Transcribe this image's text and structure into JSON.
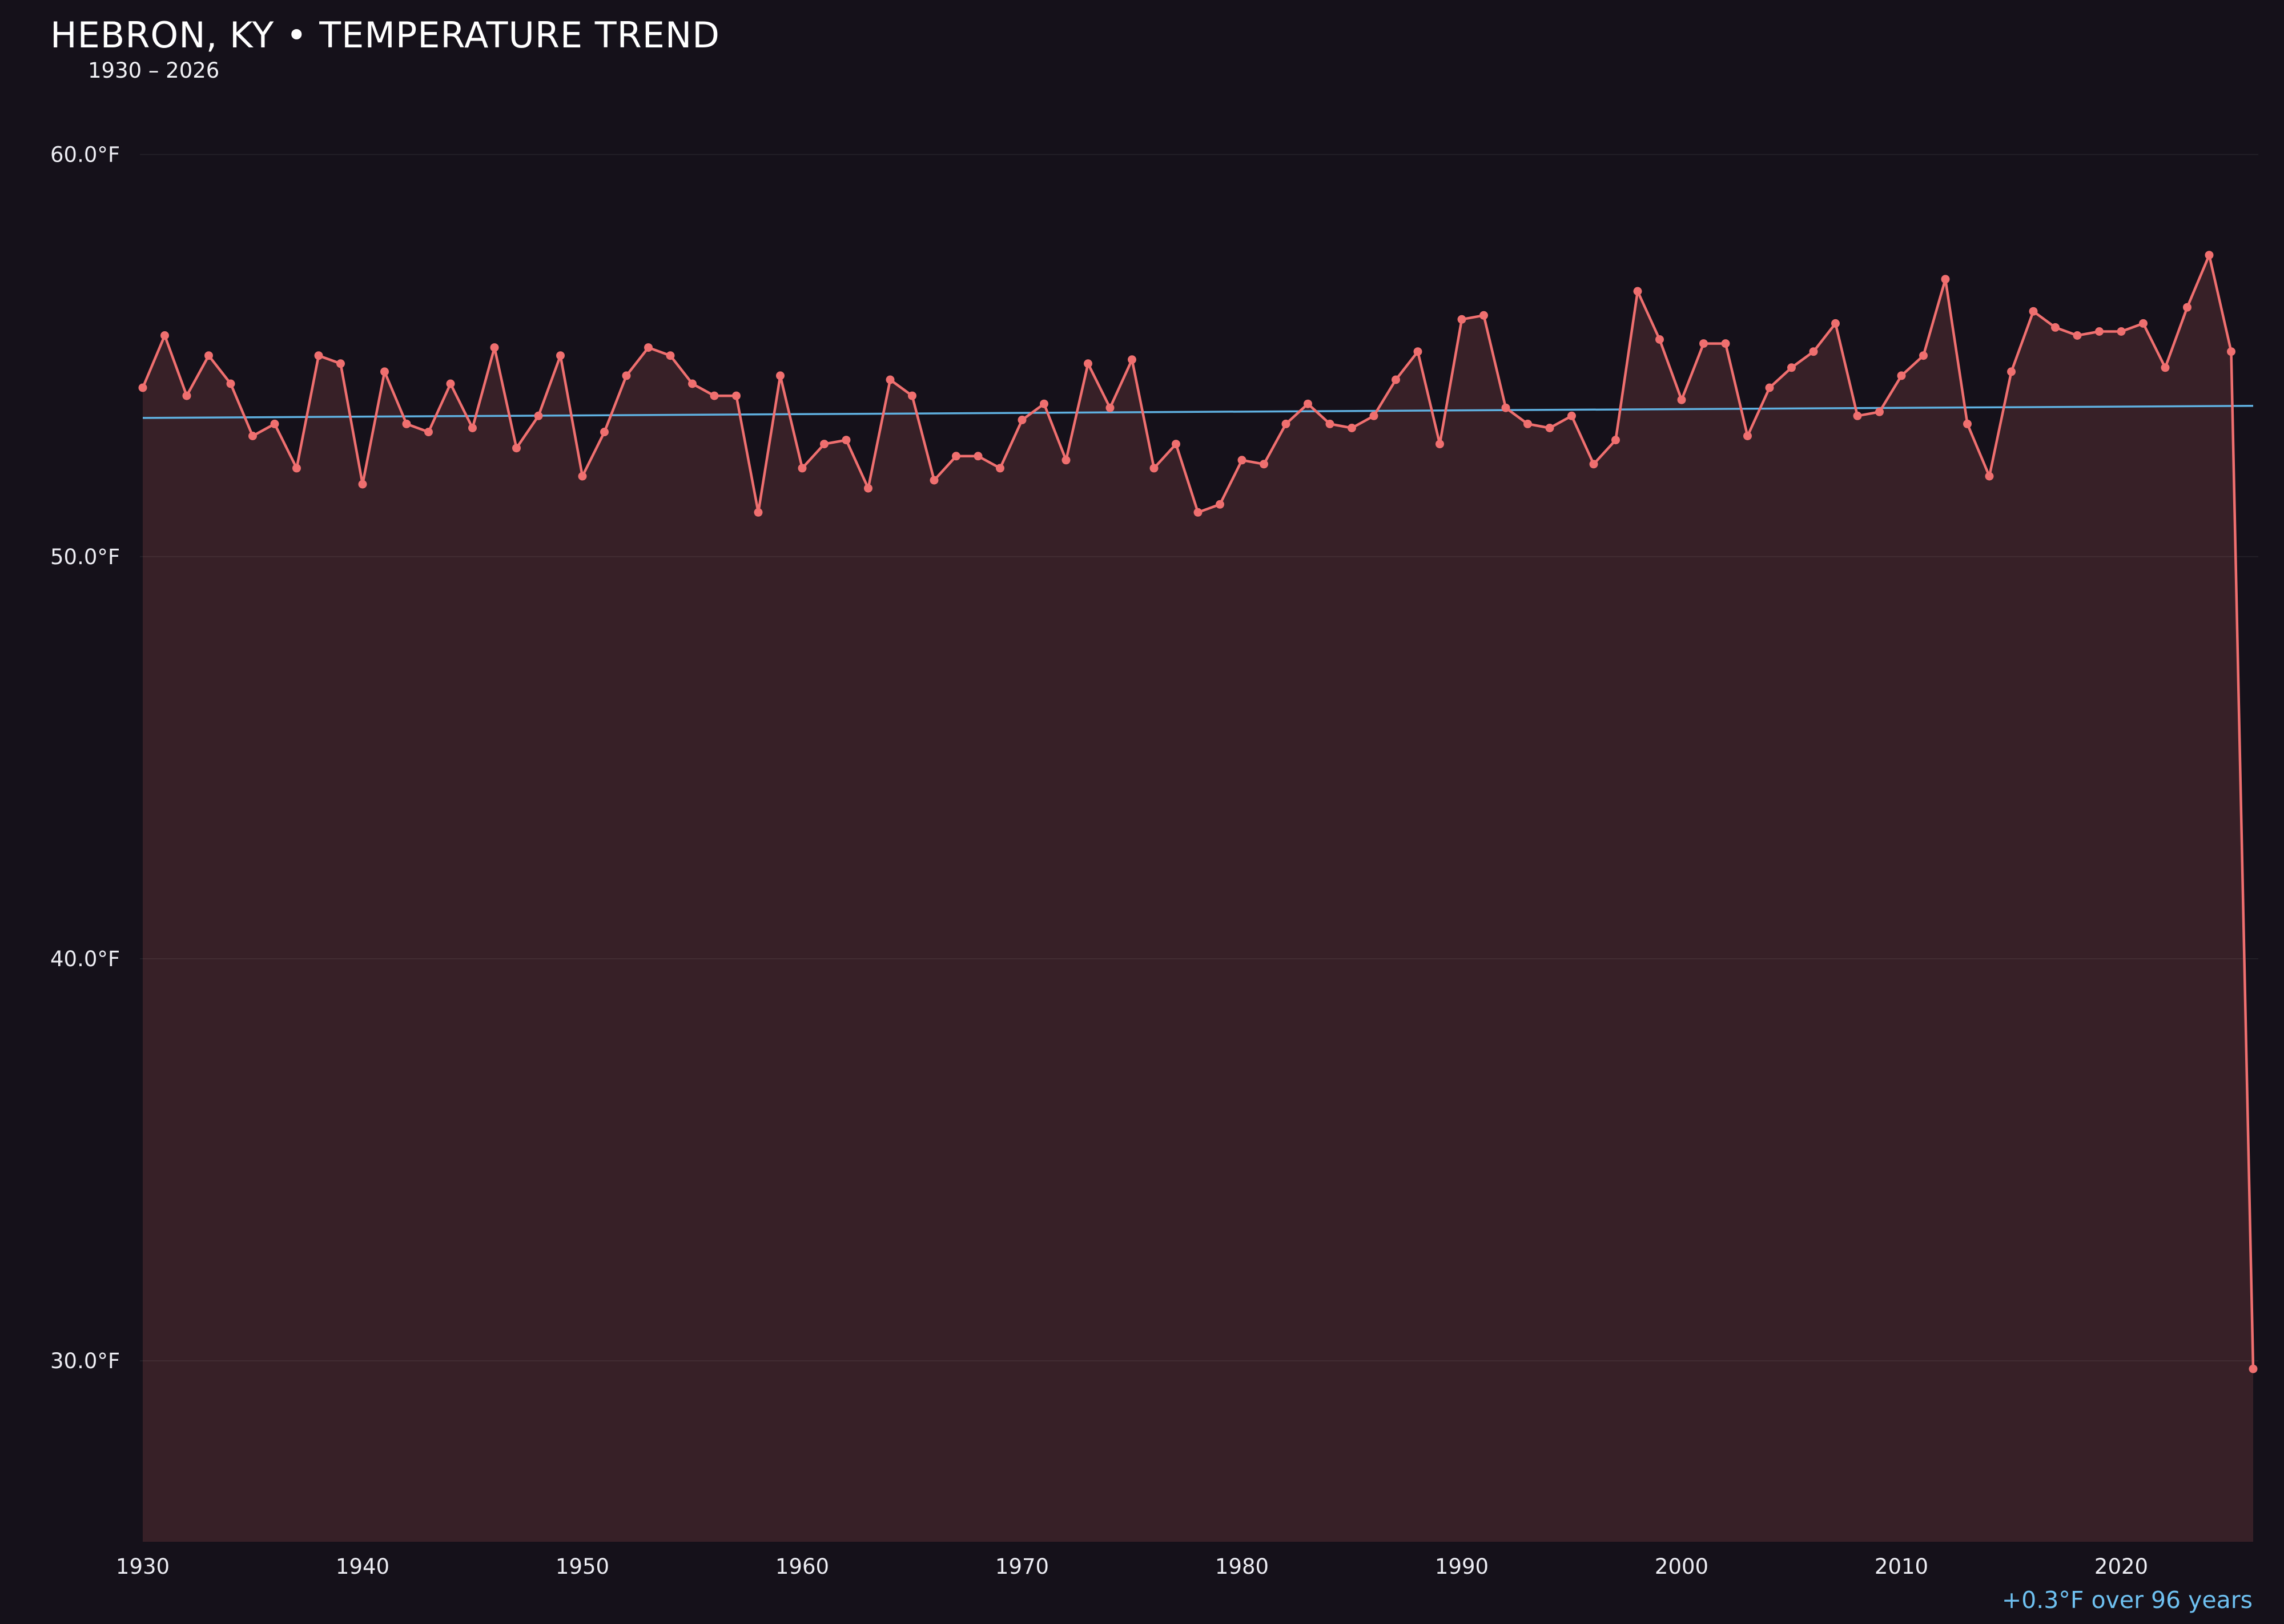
{
  "header": {
    "title": "HEBRON, KY • TEMPERATURE TREND",
    "subtitle": "1930 – 2026"
  },
  "annotation": {
    "trend_label": "+0.3°F over 96 years"
  },
  "colors": {
    "background": "#15111a",
    "line": "#ef6f6f",
    "point": "#ef6f6f",
    "fill": "#ef6f6f",
    "fill_opacity": 0.16,
    "trend_line": "#5fb0e0",
    "grid": "#ffffff",
    "grid_opacity": 0.06,
    "tick_text": "#ececf2",
    "annotation_text": "#6ec0f0",
    "title_text": "#ffffff"
  },
  "chart_data": {
    "type": "line",
    "title": "HEBRON, KY • TEMPERATURE TREND",
    "subtitle": "1930 – 2026",
    "xlabel": "",
    "ylabel": "",
    "year_start": 1930,
    "year_end": 2026,
    "values": [
      54.2,
      55.5,
      54.0,
      55.0,
      54.3,
      53.0,
      53.3,
      52.2,
      55.0,
      54.8,
      51.8,
      54.6,
      53.3,
      53.1,
      54.3,
      53.2,
      55.2,
      52.7,
      53.5,
      55.0,
      52.0,
      53.1,
      54.5,
      55.2,
      55.0,
      54.3,
      54.0,
      54.0,
      51.1,
      54.5,
      52.2,
      52.8,
      52.9,
      51.7,
      54.4,
      54.0,
      51.9,
      52.5,
      52.5,
      52.2,
      53.4,
      53.8,
      52.4,
      54.8,
      53.7,
      54.9,
      52.2,
      52.8,
      51.1,
      51.3,
      52.4,
      52.3,
      53.3,
      53.8,
      53.3,
      53.2,
      53.5,
      54.4,
      55.1,
      52.8,
      55.9,
      56.0,
      53.7,
      53.3,
      53.2,
      53.5,
      52.3,
      52.9,
      56.6,
      55.4,
      53.9,
      55.3,
      55.3,
      53.0,
      54.2,
      54.7,
      55.1,
      55.8,
      53.5,
      53.6,
      54.5,
      55.0,
      56.9,
      53.3,
      52.0,
      54.6,
      56.1,
      55.7,
      55.5,
      55.6,
      55.6,
      55.8,
      54.7,
      56.2,
      57.5,
      55.1,
      29.8
    ],
    "unit": "°F",
    "y_ticks": [
      {
        "value": 30,
        "label": "30.0°F"
      },
      {
        "value": 40,
        "label": "40.0°F"
      },
      {
        "value": 50,
        "label": "50.0°F"
      },
      {
        "value": 60,
        "label": "60.0°F"
      }
    ],
    "x_ticks": [
      1930,
      1940,
      1950,
      1960,
      1970,
      1980,
      1990,
      2000,
      2010,
      2020
    ],
    "ylim": [
      25.5,
      61.5
    ],
    "grid": "horizontal-only",
    "legend": "none",
    "trend": {
      "x": [
        1930,
        2026
      ],
      "y": [
        53.45,
        53.75
      ],
      "label": "+0.3°F over 96 years"
    },
    "annotation_position": "bottom-right"
  }
}
